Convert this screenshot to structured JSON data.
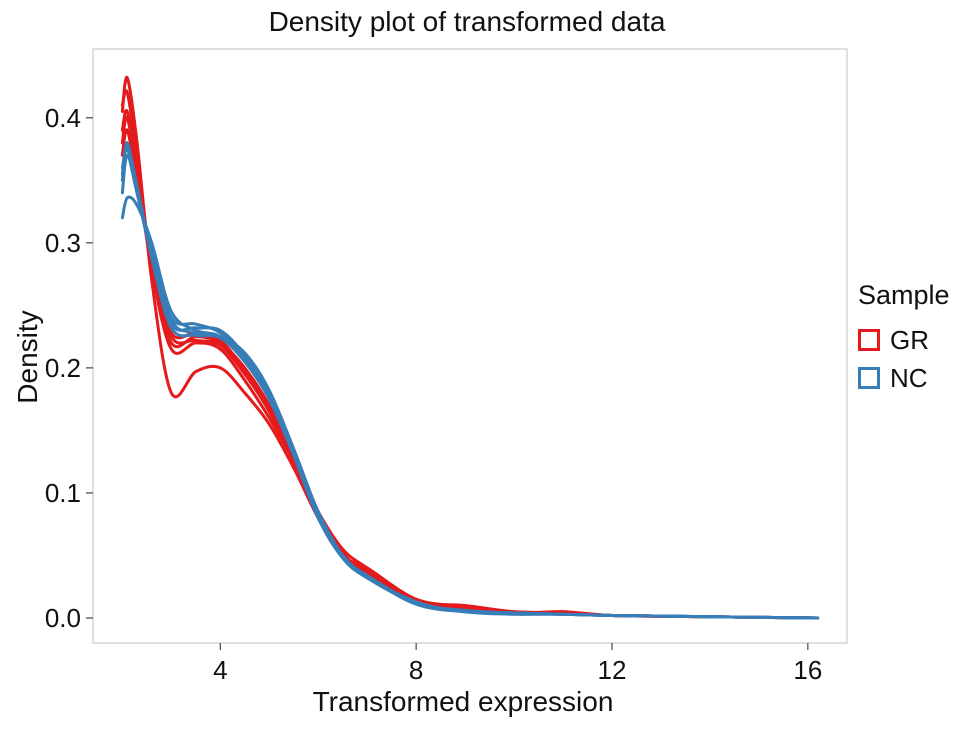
{
  "chart_data": {
    "type": "line",
    "title": "Density plot of transformed data",
    "xlabel": "Transformed expression",
    "ylabel": "Density",
    "xlim": [
      1.4,
      16.8
    ],
    "ylim": [
      -0.02,
      0.455
    ],
    "xticks": [
      4,
      8,
      12,
      16
    ],
    "xtick_labels": [
      "4",
      "8",
      "12",
      "16"
    ],
    "yticks": [
      0.0,
      0.1,
      0.2,
      0.3,
      0.4
    ],
    "ytick_labels": [
      "0.0",
      "0.1",
      "0.2",
      "0.3",
      "0.4"
    ],
    "grid": false,
    "legend": {
      "title": "Sample",
      "placement": "right",
      "entries": [
        {
          "label": "GR",
          "color": "#e41a1c"
        },
        {
          "label": "NC",
          "color": "#377eb8"
        }
      ]
    },
    "series": [
      {
        "group": "GR",
        "color": "#e41a1c",
        "x": [
          2.0,
          2.1,
          2.3,
          2.6,
          3.0,
          3.5,
          4.0,
          4.5,
          5.0,
          5.5,
          6.0,
          6.5,
          7.0,
          8.0,
          9.0,
          10.0,
          11.0,
          12.0,
          14.0,
          16.2
        ],
        "y": [
          0.405,
          0.432,
          0.38,
          0.27,
          0.18,
          0.197,
          0.2,
          0.18,
          0.155,
          0.12,
          0.08,
          0.05,
          0.04,
          0.015,
          0.008,
          0.005,
          0.004,
          0.002,
          0.001,
          0.0
        ]
      },
      {
        "group": "GR",
        "color": "#e41a1c",
        "x": [
          2.0,
          2.1,
          2.3,
          2.6,
          3.0,
          3.5,
          4.0,
          4.5,
          5.0,
          5.5,
          6.0,
          6.5,
          7.0,
          8.0,
          9.0,
          10.0,
          11.0,
          12.0,
          14.0,
          16.2
        ],
        "y": [
          0.41,
          0.42,
          0.37,
          0.28,
          0.215,
          0.22,
          0.215,
          0.19,
          0.16,
          0.125,
          0.085,
          0.055,
          0.04,
          0.014,
          0.01,
          0.005,
          0.004,
          0.002,
          0.001,
          0.0
        ]
      },
      {
        "group": "GR",
        "color": "#e41a1c",
        "x": [
          2.0,
          2.1,
          2.3,
          2.6,
          3.0,
          3.5,
          4.0,
          4.5,
          5.0,
          5.5,
          6.0,
          6.5,
          7.0,
          8.0,
          9.0,
          10.0,
          11.0,
          12.0,
          14.0,
          16.2
        ],
        "y": [
          0.39,
          0.405,
          0.36,
          0.285,
          0.225,
          0.222,
          0.218,
          0.195,
          0.165,
          0.125,
          0.08,
          0.05,
          0.038,
          0.015,
          0.009,
          0.004,
          0.005,
          0.002,
          0.001,
          0.0
        ]
      },
      {
        "group": "GR",
        "color": "#e41a1c",
        "x": [
          2.0,
          2.1,
          2.3,
          2.6,
          3.0,
          3.5,
          4.0,
          4.5,
          5.0,
          5.5,
          6.0,
          6.5,
          7.0,
          8.0,
          9.0,
          10.0,
          11.0,
          12.0,
          14.0,
          16.2
        ],
        "y": [
          0.37,
          0.39,
          0.35,
          0.285,
          0.228,
          0.228,
          0.222,
          0.198,
          0.168,
          0.128,
          0.082,
          0.052,
          0.036,
          0.013,
          0.008,
          0.004,
          0.004,
          0.002,
          0.001,
          0.0
        ]
      },
      {
        "group": "GR",
        "color": "#e41a1c",
        "x": [
          2.0,
          2.1,
          2.3,
          2.6,
          3.0,
          3.5,
          4.0,
          4.5,
          5.0,
          5.5,
          6.0,
          6.5,
          7.0,
          8.0,
          9.0,
          10.0,
          11.0,
          12.0,
          14.0,
          16.2
        ],
        "y": [
          0.38,
          0.4,
          0.355,
          0.28,
          0.22,
          0.225,
          0.22,
          0.2,
          0.17,
          0.13,
          0.085,
          0.05,
          0.035,
          0.012,
          0.009,
          0.004,
          0.005,
          0.002,
          0.001,
          0.0
        ]
      },
      {
        "group": "NC",
        "color": "#377eb8",
        "x": [
          2.0,
          2.1,
          2.3,
          2.6,
          3.0,
          3.5,
          4.0,
          4.5,
          5.0,
          5.5,
          6.0,
          6.5,
          7.0,
          8.0,
          9.0,
          10.0,
          11.0,
          12.0,
          14.0,
          16.2
        ],
        "y": [
          0.32,
          0.336,
          0.33,
          0.3,
          0.245,
          0.23,
          0.225,
          0.205,
          0.175,
          0.13,
          0.08,
          0.05,
          0.033,
          0.012,
          0.006,
          0.004,
          0.003,
          0.002,
          0.001,
          0.0
        ]
      },
      {
        "group": "NC",
        "color": "#377eb8",
        "x": [
          2.0,
          2.1,
          2.3,
          2.6,
          3.0,
          3.5,
          4.0,
          4.5,
          5.0,
          5.5,
          6.0,
          6.5,
          7.0,
          8.0,
          9.0,
          10.0,
          11.0,
          12.0,
          14.0,
          16.2
        ],
        "y": [
          0.35,
          0.38,
          0.34,
          0.29,
          0.24,
          0.235,
          0.228,
          0.208,
          0.178,
          0.132,
          0.082,
          0.048,
          0.032,
          0.012,
          0.005,
          0.004,
          0.003,
          0.002,
          0.001,
          0.0
        ]
      },
      {
        "group": "NC",
        "color": "#377eb8",
        "x": [
          2.0,
          2.1,
          2.3,
          2.6,
          3.0,
          3.5,
          4.0,
          4.5,
          5.0,
          5.5,
          6.0,
          6.5,
          7.0,
          8.0,
          9.0,
          10.0,
          11.0,
          12.0,
          14.0,
          16.2
        ],
        "y": [
          0.36,
          0.375,
          0.345,
          0.29,
          0.235,
          0.232,
          0.23,
          0.21,
          0.18,
          0.135,
          0.085,
          0.05,
          0.033,
          0.013,
          0.005,
          0.003,
          0.003,
          0.002,
          0.001,
          0.0
        ]
      },
      {
        "group": "NC",
        "color": "#377eb8",
        "x": [
          2.0,
          2.1,
          2.3,
          2.6,
          3.0,
          3.5,
          4.0,
          4.5,
          5.0,
          5.5,
          6.0,
          6.5,
          7.0,
          8.0,
          9.0,
          10.0,
          11.0,
          12.0,
          14.0,
          16.2
        ],
        "y": [
          0.34,
          0.37,
          0.34,
          0.295,
          0.238,
          0.228,
          0.225,
          0.212,
          0.182,
          0.135,
          0.083,
          0.049,
          0.034,
          0.012,
          0.006,
          0.004,
          0.003,
          0.002,
          0.001,
          0.0
        ]
      },
      {
        "group": "NC",
        "color": "#377eb8",
        "x": [
          2.0,
          2.1,
          2.3,
          2.6,
          3.0,
          3.5,
          4.0,
          4.5,
          5.0,
          5.5,
          6.0,
          6.5,
          7.0,
          8.0,
          9.0,
          10.0,
          11.0,
          12.0,
          14.0,
          16.2
        ],
        "y": [
          0.355,
          0.378,
          0.345,
          0.288,
          0.232,
          0.226,
          0.224,
          0.205,
          0.176,
          0.13,
          0.08,
          0.048,
          0.033,
          0.011,
          0.005,
          0.004,
          0.003,
          0.002,
          0.001,
          0.0
        ]
      }
    ]
  }
}
